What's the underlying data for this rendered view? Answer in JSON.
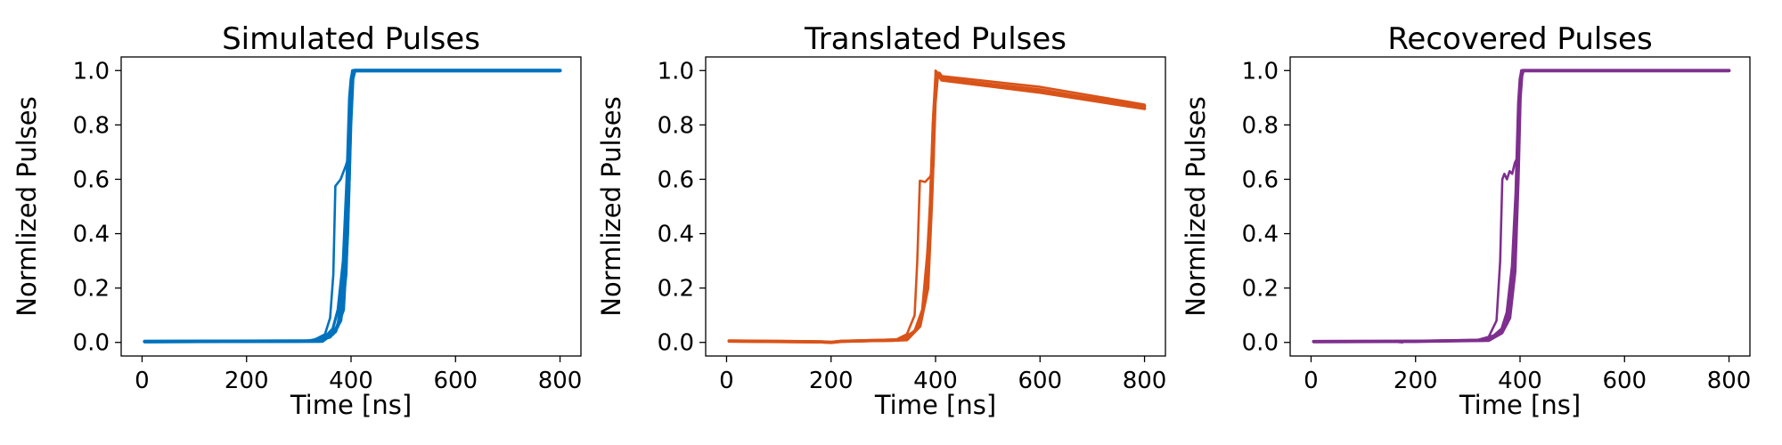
{
  "chart_data": [
    {
      "type": "line",
      "title": "Simulated Pulses",
      "xlabel": "Time [ns]",
      "ylabel": "Normlized Pulses",
      "xlim": [
        -40,
        840
      ],
      "ylim": [
        -0.05,
        1.05
      ],
      "xticks": [
        0,
        200,
        400,
        600,
        800
      ],
      "yticks": [
        0.0,
        0.2,
        0.4,
        0.6,
        0.8,
        1.0
      ],
      "color": "#0072BD",
      "grid": false,
      "series": [
        {
          "x": [
            5,
            300,
            330,
            350,
            360,
            366,
            370,
            380,
            390,
            398,
            402,
            800
          ],
          "y": [
            0.003,
            0.003,
            0.01,
            0.03,
            0.09,
            0.25,
            0.575,
            0.6,
            0.65,
            0.7,
            1.0,
            1.0
          ]
        },
        {
          "x": [
            5,
            320,
            350,
            365,
            375,
            385,
            392,
            397,
            400,
            403,
            800
          ],
          "y": [
            0.003,
            0.005,
            0.02,
            0.05,
            0.12,
            0.3,
            0.6,
            0.9,
            0.97,
            1.0,
            1.0
          ]
        },
        {
          "x": [
            5,
            330,
            360,
            375,
            385,
            393,
            398,
            401,
            404,
            800
          ],
          "y": [
            0.003,
            0.005,
            0.02,
            0.06,
            0.2,
            0.5,
            0.85,
            0.97,
            1.0,
            1.0
          ]
        },
        {
          "x": [
            5,
            340,
            365,
            380,
            390,
            396,
            400,
            403,
            406,
            800
          ],
          "y": [
            0.003,
            0.005,
            0.03,
            0.08,
            0.25,
            0.6,
            0.9,
            0.98,
            1.0,
            1.0
          ]
        },
        {
          "x": [
            5,
            345,
            370,
            385,
            393,
            399,
            403,
            407,
            800
          ],
          "y": [
            0.003,
            0.005,
            0.04,
            0.12,
            0.4,
            0.8,
            0.97,
            1.0,
            1.0
          ]
        }
      ]
    },
    {
      "type": "line",
      "title": "Translated Pulses",
      "xlabel": "Time [ns]",
      "ylabel": "Normlized Pulses",
      "xlim": [
        -40,
        840
      ],
      "ylim": [
        -0.05,
        1.05
      ],
      "xticks": [
        0,
        200,
        400,
        600,
        800
      ],
      "yticks": [
        0.0,
        0.2,
        0.4,
        0.6,
        0.8,
        1.0
      ],
      "color": "#D95319",
      "grid": false,
      "series": [
        {
          "x": [
            5,
            100,
            180,
            200,
            220,
            320,
            345,
            360,
            365,
            370,
            380,
            390,
            396,
            400,
            410,
            600,
            800
          ],
          "y": [
            0.005,
            0.004,
            0.002,
            0.0,
            0.004,
            0.006,
            0.03,
            0.1,
            0.3,
            0.595,
            0.59,
            0.61,
            0.65,
            1.0,
            0.98,
            0.94,
            0.875
          ]
        },
        {
          "x": [
            5,
            180,
            200,
            220,
            330,
            360,
            375,
            388,
            395,
            400,
            403,
            410,
            600,
            800
          ],
          "y": [
            0.005,
            0.002,
            0.0,
            0.004,
            0.008,
            0.04,
            0.12,
            0.4,
            0.8,
            0.97,
            0.99,
            0.97,
            0.93,
            0.865
          ]
        },
        {
          "x": [
            5,
            180,
            200,
            220,
            340,
            365,
            380,
            390,
            397,
            401,
            405,
            412,
            600,
            800
          ],
          "y": [
            0.005,
            0.002,
            0.0,
            0.004,
            0.01,
            0.05,
            0.15,
            0.5,
            0.85,
            0.96,
            0.985,
            0.965,
            0.92,
            0.86
          ]
        },
        {
          "x": [
            5,
            180,
            200,
            220,
            345,
            370,
            385,
            393,
            399,
            403,
            407,
            414,
            600,
            800
          ],
          "y": [
            0.005,
            0.002,
            0.0,
            0.004,
            0.01,
            0.06,
            0.2,
            0.55,
            0.88,
            0.97,
            0.99,
            0.97,
            0.925,
            0.87
          ]
        }
      ]
    },
    {
      "type": "line",
      "title": "Recovered Pulses",
      "xlabel": "Time [ns]",
      "ylabel": "Normlized Pulses",
      "xlim": [
        -40,
        840
      ],
      "ylim": [
        -0.05,
        1.05
      ],
      "xticks": [
        0,
        200,
        400,
        600,
        800
      ],
      "yticks": [
        0.0,
        0.2,
        0.4,
        0.6,
        0.8,
        1.0
      ],
      "color": "#7E2F8E",
      "grid": false,
      "series": [
        {
          "x": [
            5,
            50,
            100,
            150,
            175,
            180,
            200,
            250,
            300,
            320,
            340,
            355,
            362,
            366,
            370,
            375,
            380,
            385,
            390,
            395,
            398,
            402,
            800
          ],
          "y": [
            0.003,
            0.004,
            0.002,
            0.004,
            0.0,
            0.006,
            0.004,
            0.006,
            0.006,
            0.01,
            0.02,
            0.08,
            0.3,
            0.6,
            0.62,
            0.6,
            0.63,
            0.62,
            0.66,
            0.68,
            0.8,
            1.0,
            1.0
          ]
        },
        {
          "x": [
            5,
            200,
            320,
            350,
            365,
            375,
            385,
            392,
            397,
            400,
            403,
            800
          ],
          "y": [
            0.003,
            0.004,
            0.008,
            0.025,
            0.05,
            0.11,
            0.28,
            0.55,
            0.88,
            0.97,
            1.0,
            1.0
          ]
        },
        {
          "x": [
            5,
            200,
            330,
            360,
            375,
            385,
            393,
            398,
            401,
            404,
            800
          ],
          "y": [
            0.003,
            0.004,
            0.008,
            0.03,
            0.07,
            0.2,
            0.5,
            0.85,
            0.97,
            1.0,
            1.0
          ]
        },
        {
          "x": [
            5,
            200,
            340,
            365,
            380,
            390,
            396,
            400,
            403,
            406,
            800
          ],
          "y": [
            0.003,
            0.004,
            0.008,
            0.035,
            0.09,
            0.26,
            0.6,
            0.9,
            0.98,
            1.0,
            1.0
          ]
        }
      ]
    }
  ]
}
